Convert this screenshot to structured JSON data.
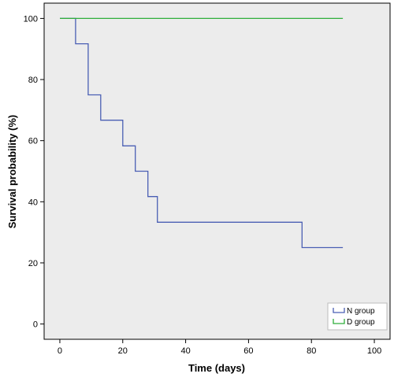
{
  "chart_data": {
    "type": "line",
    "title": "",
    "xlabel": "Time (days)",
    "ylabel": "Survival probability (%)",
    "xlim": [
      -5,
      105
    ],
    "ylim": [
      -5,
      105
    ],
    "xticks": [
      "0",
      "20",
      "40",
      "60",
      "80",
      "100"
    ],
    "yticks": [
      "0",
      "20",
      "40",
      "60",
      "80",
      "100"
    ],
    "grid": false,
    "legend_placement": "bottom-right",
    "background": "#ececec",
    "series": [
      {
        "name": "N group",
        "color": "#4a5fb4",
        "step": true,
        "x": [
          0,
          5,
          9,
          13,
          20,
          24,
          28,
          31,
          77,
          90
        ],
        "y": [
          100,
          91.7,
          75,
          66.7,
          58.3,
          50,
          41.7,
          33.3,
          25,
          25
        ]
      },
      {
        "name": "D group",
        "color": "#2fae3a",
        "step": true,
        "x": [
          0,
          90
        ],
        "y": [
          100,
          100
        ]
      }
    ]
  }
}
